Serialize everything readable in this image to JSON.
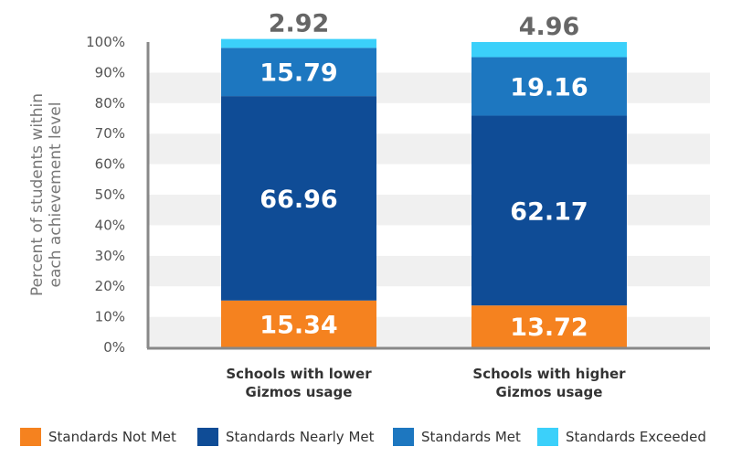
{
  "chart_data": {
    "type": "bar",
    "stacked": true,
    "categories": [
      [
        "Schools with lower",
        "Gizmos usage"
      ],
      [
        "Schools with higher",
        "Gizmos usage"
      ]
    ],
    "series": [
      {
        "name": "Standards Not Met",
        "color": "#F5821F",
        "values": [
          15.34,
          13.72
        ]
      },
      {
        "name": "Standards Nearly Met",
        "color": "#0F4C96",
        "values": [
          66.96,
          62.17
        ]
      },
      {
        "name": "Standards Met",
        "color": "#1D77C0",
        "values": [
          15.79,
          19.16
        ]
      },
      {
        "name": "Standards Exceeded",
        "color": "#3BD0FA",
        "values": [
          2.92,
          4.96
        ]
      }
    ],
    "ylabel": "Percent of students within each achievement level",
    "ylim": [
      0,
      100
    ],
    "yticks": [
      "0%",
      "10%",
      "20%",
      "30%",
      "40%",
      "50%",
      "60%",
      "70%",
      "80%",
      "90%",
      "100%"
    ],
    "grid": "alternating horizontal bands",
    "legend_position": "bottom"
  }
}
